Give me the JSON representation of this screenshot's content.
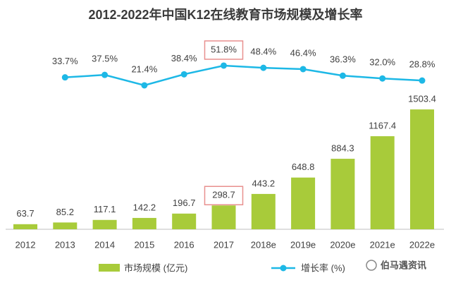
{
  "chart_data": {
    "type": "bar-line",
    "title": "2012-2022年中国K12在线教育市场规模及增长率",
    "categories": [
      "2012",
      "2013",
      "2014",
      "2015",
      "2016",
      "2017",
      "2018e",
      "2019e",
      "2020e",
      "2021e",
      "2022e"
    ],
    "series": [
      {
        "name": "市场规模 (亿元)",
        "type": "bar",
        "color": "#a8cb3a",
        "values": [
          63.7,
          85.2,
          117.1,
          142.2,
          196.7,
          298.7,
          443.2,
          648.8,
          884.3,
          1167.4,
          1503.4
        ]
      },
      {
        "name": "增长率 (%)",
        "type": "line",
        "axis": "y2",
        "color": "#1db8e6",
        "values": [
          null,
          33.7,
          37.5,
          21.4,
          38.4,
          51.8,
          48.4,
          46.4,
          36.3,
          32.0,
          28.8
        ],
        "value_labels": [
          null,
          "33.7%",
          "37.5%",
          "21.4%",
          "38.4%",
          "51.8%",
          "48.4%",
          "46.4%",
          "36.3%",
          "32.0%",
          "28.8%"
        ]
      }
    ],
    "highlight": 5,
    "watermark": "伯马遇资讯"
  }
}
